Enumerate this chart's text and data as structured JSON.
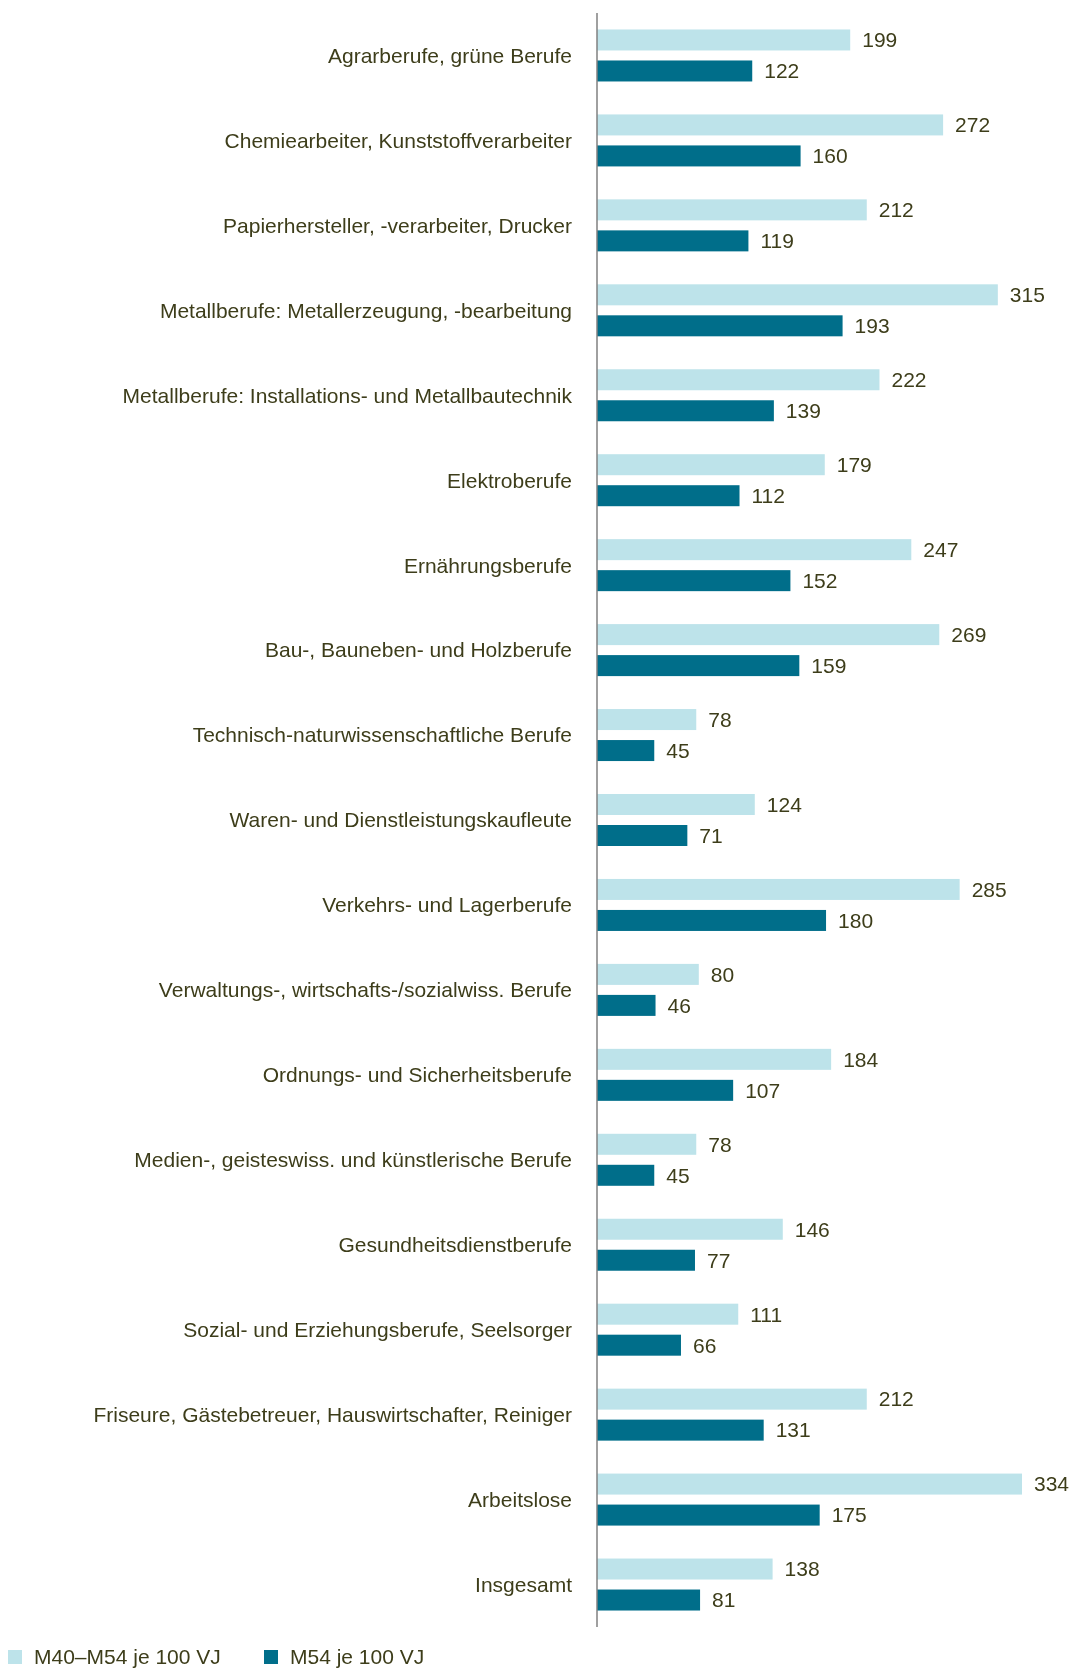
{
  "chart_data": {
    "type": "bar",
    "orientation": "horizontal",
    "categories": [
      "Agrarberufe, grüne Berufe",
      "Chemiearbeiter, Kunststoffverarbeiter",
      "Papierhersteller, -verarbeiter, Drucker",
      "Metallberufe: Metallerzeugung, -bearbeitung",
      "Metallberufe: Installations- und Metallbautechnik",
      "Elektroberufe",
      "Ernährungsberufe",
      "Bau-, Bauneben- und Holzberufe",
      "Technisch-naturwissenschaftliche Berufe",
      "Waren- und Dienstleistungskaufleute",
      "Verkehrs- und Lagerberufe",
      "Verwaltungs-, wirtschafts-/sozialwiss. Berufe",
      "Ordnungs- und Sicherheitsberufe",
      "Medien-, geisteswiss. und künstlerische Berufe",
      "Gesundheitsdienstberufe",
      "Sozial- und Erziehungsberufe, Seelsorger",
      "Friseure, Gästebetreuer, Hauswirtschafter, Reiniger",
      "Arbeitslose",
      "Insgesamt"
    ],
    "series": [
      {
        "name": "M40–M54 je 100 VJ",
        "color": "#bde3ea",
        "values": [
          199,
          272,
          212,
          315,
          222,
          179,
          247,
          269,
          78,
          124,
          285,
          80,
          184,
          78,
          146,
          111,
          212,
          334,
          138
        ]
      },
      {
        "name": "M54 je 100 VJ",
        "color": "#006e8a",
        "values": [
          122,
          160,
          119,
          193,
          139,
          112,
          152,
          159,
          45,
          71,
          180,
          46,
          107,
          45,
          77,
          66,
          131,
          175,
          81
        ]
      }
    ],
    "data_labels": true,
    "legend": "bottom"
  }
}
